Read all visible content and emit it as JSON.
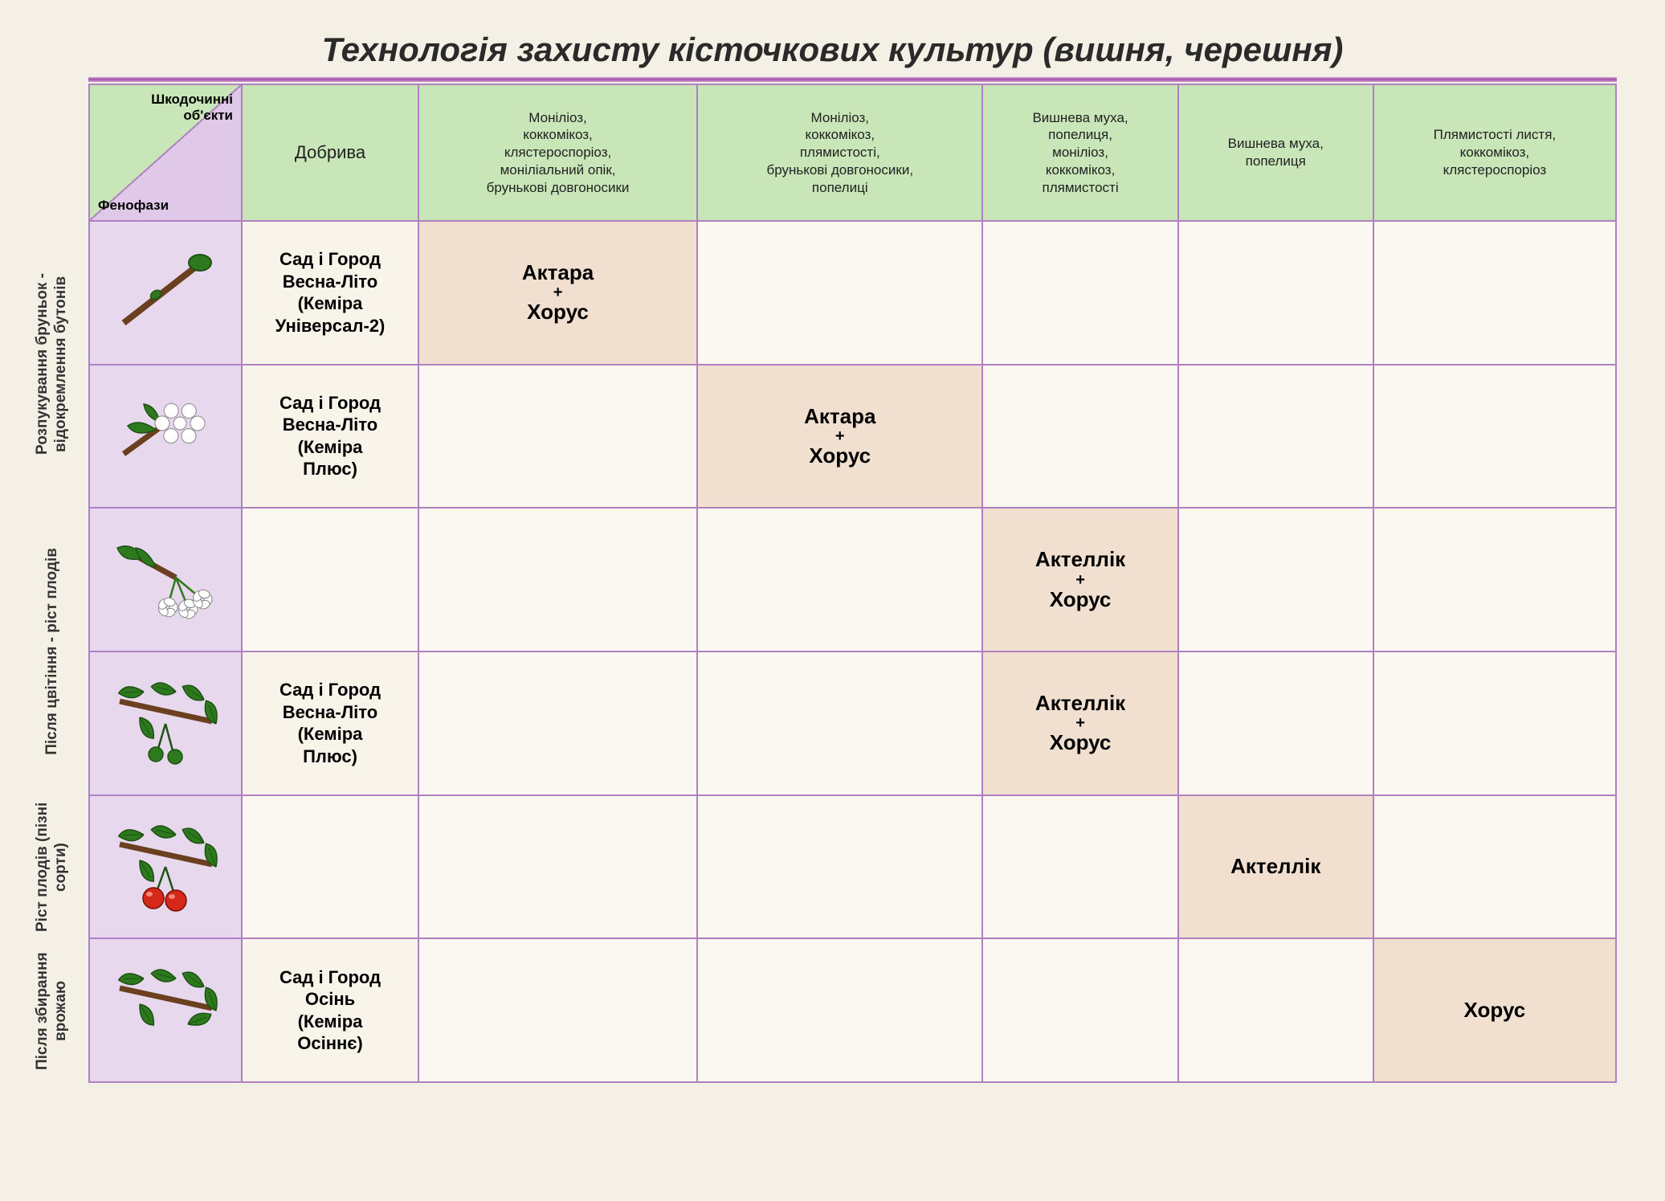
{
  "title": "Технологія захисту кісточкових культур (вишня, черешня)",
  "title_fontsize": 42,
  "colors": {
    "background": "#f5f0e5",
    "header_green": "#c8e6b8",
    "header_lilac": "#e0c8e8",
    "row_icon_bg": "#e8d8ee",
    "border": "#b080c0",
    "treatment_bg": "#f1e0d0",
    "fertilizer_bg": "#f9f4ea",
    "divider_purple": "#a050a5"
  },
  "corner": {
    "top_label": "Шкодочинні\nоб'єкти",
    "bottom_label": "Фенофази"
  },
  "column_headers": [
    "Добрива",
    "Моніліоз, коккомікоз, клястероспоріоз, моніліальний опік, брунькові довгоносики",
    "Моніліоз, коккомікоз, плямистості, брунькові довгоносики, попелиці",
    "Вишнева муха, попелиця, моніліоз, коккомікоз, плямистості",
    "Вишнева муха, попелиця",
    "Плямистості листя, коккомікоз, клястероспоріоз"
  ],
  "row_group_labels": [
    {
      "text": "Розпукування бруньок - відокремлення бутонів",
      "rows": 2
    },
    {
      "text": "Після цвітіння - ріст плодів",
      "rows": 2
    },
    {
      "text": "Ріст плодів (пізні сорти)",
      "rows": 1
    },
    {
      "text": "Після збирання врожаю",
      "rows": 1
    }
  ],
  "rows": [
    {
      "icon": "bud-stage",
      "fertilizer": "Сад і Город Весна-Літо (Кеміра Універсал-2)",
      "cells": [
        "Актара\n+\nХорус",
        "",
        "",
        "",
        ""
      ]
    },
    {
      "icon": "flower-cluster",
      "fertilizer": "Сад і Город Весна-Літо (Кеміра Плюс)",
      "cells": [
        "",
        "Актара\n+\nХорус",
        "",
        "",
        ""
      ]
    },
    {
      "icon": "blossom",
      "fertilizer": "",
      "cells": [
        "",
        "",
        "Актеллік\n+\nХорус",
        "",
        ""
      ]
    },
    {
      "icon": "small-fruit",
      "fertilizer": "Сад і Город Весна-Літо (Кеміра Плюс)",
      "cells": [
        "",
        "",
        "Актеллік\n+\nХорус",
        "",
        ""
      ]
    },
    {
      "icon": "ripe-cherry",
      "fertilizer": "",
      "cells": [
        "",
        "",
        "",
        "Актеллік",
        ""
      ]
    },
    {
      "icon": "leaves-only",
      "fertilizer": "Сад і Город Осінь (Кеміра Осіннє)",
      "cells": [
        "",
        "",
        "",
        "",
        "Хорус"
      ]
    }
  ],
  "layout": {
    "header_row_height": 170,
    "body_row_height": 175,
    "rotated_label_col_width": 90,
    "icon_col_width": 190,
    "fertilizer_col_width": 220
  }
}
